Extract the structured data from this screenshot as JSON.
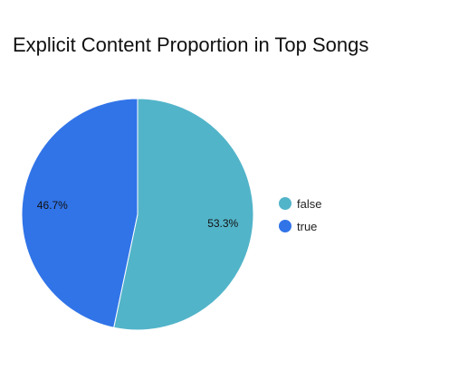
{
  "chart_data": {
    "type": "pie",
    "title": "Explicit Content Proportion in Top Songs",
    "slices": [
      {
        "label": "false",
        "value": 53.3,
        "display": "53.3%",
        "color": "#52b4c9"
      },
      {
        "label": "true",
        "value": 46.7,
        "display": "46.7%",
        "color": "#3174e8"
      }
    ],
    "legend_position": "right"
  }
}
